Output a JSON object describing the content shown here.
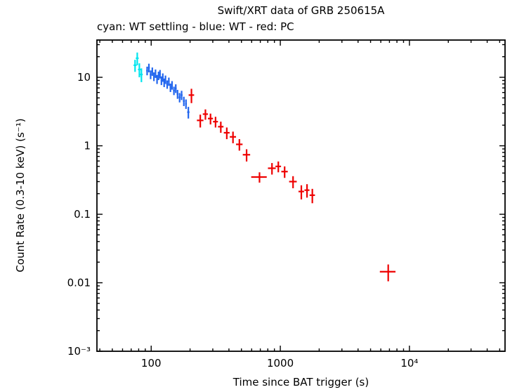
{
  "chart_data": {
    "type": "scatter",
    "title": "Swift/XRT data of GRB 250615A",
    "subtitle": "cyan: WT settling - blue: WT - red: PC",
    "xlabel": "Time since BAT trigger (s)",
    "ylabel": "Count Rate (0.3-10 keV) (s⁻¹)",
    "xscale": "log",
    "yscale": "log",
    "xlim": [
      38,
      55000
    ],
    "ylim": [
      0.001,
      35
    ],
    "grid": false,
    "legend_position": "top-left-above-plot",
    "axis_color": "#000000",
    "background_color": "#ffffff",
    "x_major_ticks": [
      {
        "value": 100,
        "label": "100"
      },
      {
        "value": 1000,
        "label": "1000"
      },
      {
        "value": 10000,
        "label": "10⁴"
      }
    ],
    "y_major_ticks": [
      {
        "value": 10,
        "label": "10"
      },
      {
        "value": 1,
        "label": "1"
      },
      {
        "value": 0.1,
        "label": "0.1"
      },
      {
        "value": 0.01,
        "label": "0.01"
      },
      {
        "value": 0.001,
        "label": "10⁻³"
      }
    ],
    "point_format": "[time_s, time_err_s, count_rate, count_rate_err]",
    "series": [
      {
        "name": "WT settling",
        "color": "#00e5ee",
        "marker": "cross-errorbar",
        "points": [
          [
            75,
            2,
            15,
            3
          ],
          [
            78,
            2,
            19,
            4
          ],
          [
            81,
            2,
            13,
            3
          ],
          [
            84,
            2,
            11,
            2.5
          ]
        ]
      },
      {
        "name": "WT",
        "color": "#2266ee",
        "marker": "cross-errorbar",
        "points": [
          [
            93,
            1.5,
            12.5,
            1.8
          ],
          [
            96,
            1.5,
            13.8,
            2.0
          ],
          [
            99,
            1.5,
            11.0,
            1.6
          ],
          [
            102,
            1.5,
            12.2,
            1.7
          ],
          [
            105,
            1.5,
            10.3,
            1.5
          ],
          [
            108,
            1.5,
            11.4,
            1.6
          ],
          [
            111,
            1.5,
            9.4,
            1.4
          ],
          [
            114,
            1.5,
            10.6,
            1.5
          ],
          [
            117,
            1.5,
            11.2,
            1.6
          ],
          [
            120,
            1.5,
            9.0,
            1.3
          ],
          [
            123,
            1.5,
            10.0,
            1.4
          ],
          [
            126,
            1.5,
            8.4,
            1.2
          ],
          [
            129,
            1.5,
            9.3,
            1.3
          ],
          [
            133,
            2,
            7.9,
            1.1
          ],
          [
            137,
            2,
            8.7,
            1.2
          ],
          [
            141,
            2,
            7.1,
            1.0
          ],
          [
            145,
            2,
            7.7,
            1.1
          ],
          [
            150,
            2.5,
            6.4,
            0.9
          ],
          [
            155,
            2.5,
            6.9,
            1.0
          ],
          [
            160,
            2.5,
            5.7,
            0.85
          ],
          [
            166,
            3,
            5.1,
            0.8
          ],
          [
            172,
            3,
            5.5,
            0.85
          ],
          [
            179,
            3,
            4.5,
            0.7
          ],
          [
            186,
            3,
            4.1,
            0.65
          ],
          [
            194,
            4,
            3.1,
            0.6
          ]
        ]
      },
      {
        "name": "PC",
        "color": "#ee0000",
        "marker": "cross-errorbar",
        "points": [
          [
            205,
            10,
            5.5,
            1.3
          ],
          [
            240,
            14,
            2.35,
            0.5
          ],
          [
            263,
            12,
            2.9,
            0.5
          ],
          [
            288,
            13,
            2.5,
            0.45
          ],
          [
            315,
            14,
            2.25,
            0.4
          ],
          [
            346,
            17,
            1.9,
            0.35
          ],
          [
            385,
            20,
            1.55,
            0.3
          ],
          [
            430,
            24,
            1.35,
            0.26
          ],
          [
            482,
            28,
            1.05,
            0.2
          ],
          [
            548,
            36,
            0.74,
            0.15
          ],
          [
            690,
            95,
            0.35,
            0.06
          ],
          [
            862,
            60,
            0.47,
            0.09
          ],
          [
            965,
            48,
            0.5,
            0.09
          ],
          [
            1080,
            62,
            0.42,
            0.08
          ],
          [
            1255,
            85,
            0.3,
            0.06
          ],
          [
            1455,
            72,
            0.215,
            0.05
          ],
          [
            1610,
            72,
            0.225,
            0.05
          ],
          [
            1770,
            85,
            0.19,
            0.045
          ],
          [
            6850,
            950,
            0.0145,
            0.004
          ]
        ]
      }
    ]
  }
}
